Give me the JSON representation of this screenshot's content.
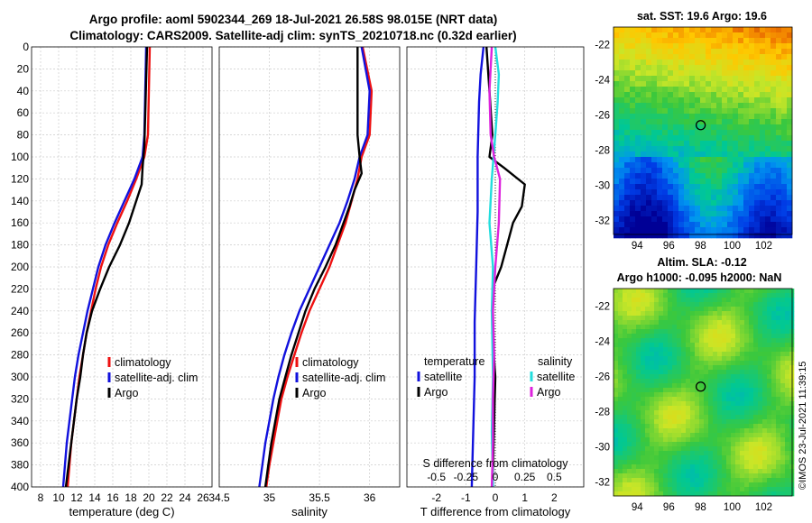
{
  "titles": {
    "line1": "Argo profile: aoml 5902344_269 18-Jul-2021 26.58S 98.015E (NRT data)",
    "line2": "Climatology: CARS2009. Satellite-adj clim: synTS_20210718.nc (0.32d earlier)"
  },
  "colors": {
    "climatology": "#ee1111",
    "satellite": "#1111dd",
    "argo": "#000000",
    "sal_sat": "#22dddd",
    "sal_argo": "#dd22dd"
  },
  "maps": {
    "sst_title": "sat. SST: 19.6 Argo: 19.6",
    "sla_title1": "Altim. SLA: -0.12",
    "sla_title2": "Argo h1000: -0.095 h2000: NaN",
    "lat_ticks": [
      "-22",
      "-24",
      "-26",
      "-28",
      "-30",
      "-32"
    ],
    "lon_ticks": [
      "94",
      "96",
      "98",
      "100",
      "102"
    ]
  },
  "watermark": "©IMOS 23-Jul-2021 11:39:15",
  "chart_data": [
    {
      "type": "line",
      "title": "",
      "xlabel": "temperature (deg C)",
      "ylabel": "",
      "xlim": [
        7,
        27
      ],
      "ylim": [
        400,
        0
      ],
      "xticks": [
        8,
        10,
        12,
        14,
        16,
        18,
        20,
        22,
        24,
        26
      ],
      "yticks": [
        0,
        20,
        40,
        60,
        80,
        100,
        120,
        140,
        160,
        180,
        200,
        220,
        240,
        260,
        280,
        300,
        320,
        340,
        360,
        380,
        400
      ],
      "legend": [
        "climatology",
        "satellite-adj. clim",
        "Argo"
      ],
      "series": [
        {
          "name": "climatology",
          "color": "#ee1111",
          "points": [
            [
              20.1,
              0
            ],
            [
              20.0,
              40
            ],
            [
              19.9,
              80
            ],
            [
              19.5,
              100
            ],
            [
              18.6,
              120
            ],
            [
              17.6,
              140
            ],
            [
              16.5,
              160
            ],
            [
              15.5,
              180
            ],
            [
              14.7,
              200
            ],
            [
              14.1,
              220
            ],
            [
              13.6,
              240
            ],
            [
              13.1,
              260
            ],
            [
              12.7,
              280
            ],
            [
              12.3,
              300
            ],
            [
              12.0,
              320
            ],
            [
              11.7,
              340
            ],
            [
              11.4,
              360
            ],
            [
              11.2,
              380
            ],
            [
              11.0,
              400
            ]
          ]
        },
        {
          "name": "satellite-adj. clim",
          "color": "#1111dd",
          "points": [
            [
              19.7,
              0
            ],
            [
              19.6,
              40
            ],
            [
              19.5,
              80
            ],
            [
              19.3,
              100
            ],
            [
              18.4,
              120
            ],
            [
              17.3,
              140
            ],
            [
              16.2,
              160
            ],
            [
              15.2,
              180
            ],
            [
              14.4,
              200
            ],
            [
              13.8,
              220
            ],
            [
              13.2,
              240
            ],
            [
              12.7,
              260
            ],
            [
              12.2,
              280
            ],
            [
              11.8,
              300
            ],
            [
              11.5,
              320
            ],
            [
              11.2,
              340
            ],
            [
              10.9,
              360
            ],
            [
              10.7,
              380
            ],
            [
              10.5,
              400
            ]
          ]
        },
        {
          "name": "Argo",
          "color": "#000000",
          "points": [
            [
              19.8,
              0
            ],
            [
              19.7,
              30
            ],
            [
              19.6,
              60
            ],
            [
              19.5,
              90
            ],
            [
              19.3,
              110
            ],
            [
              19.2,
              125
            ],
            [
              18.6,
              140
            ],
            [
              17.8,
              160
            ],
            [
              16.8,
              180
            ],
            [
              15.6,
              200
            ],
            [
              14.6,
              220
            ],
            [
              13.7,
              240
            ],
            [
              13.1,
              260
            ],
            [
              12.7,
              280
            ],
            [
              12.4,
              300
            ],
            [
              12.0,
              320
            ],
            [
              11.7,
              340
            ],
            [
              11.4,
              360
            ],
            [
              11.1,
              380
            ],
            [
              10.8,
              400
            ]
          ]
        }
      ]
    },
    {
      "type": "line",
      "title": "",
      "xlabel": "salinity",
      "ylabel": "",
      "xlim": [
        34.5,
        36.3
      ],
      "ylim": [
        400,
        0
      ],
      "xticks": [
        34.5,
        35,
        35.5,
        36
      ],
      "xtick_labels": [
        "34.5",
        "35",
        "35.5",
        "36"
      ],
      "legend": [
        "climatology",
        "satellite-adj. clim",
        "Argo"
      ],
      "series": [
        {
          "name": "climatology",
          "color": "#ee1111",
          "points": [
            [
              35.93,
              0
            ],
            [
              36.02,
              40
            ],
            [
              36.0,
              80
            ],
            [
              35.92,
              100
            ],
            [
              35.88,
              120
            ],
            [
              35.82,
              140
            ],
            [
              35.76,
              160
            ],
            [
              35.68,
              180
            ],
            [
              35.6,
              200
            ],
            [
              35.5,
              220
            ],
            [
              35.4,
              240
            ],
            [
              35.32,
              260
            ],
            [
              35.25,
              280
            ],
            [
              35.18,
              300
            ],
            [
              35.12,
              320
            ],
            [
              35.08,
              340
            ],
            [
              35.04,
              360
            ],
            [
              35.0,
              380
            ],
            [
              34.97,
              400
            ]
          ]
        },
        {
          "name": "satellite-adj. clim",
          "color": "#1111dd",
          "points": [
            [
              35.92,
              0
            ],
            [
              36.0,
              40
            ],
            [
              35.98,
              80
            ],
            [
              35.9,
              100
            ],
            [
              35.85,
              120
            ],
            [
              35.78,
              140
            ],
            [
              35.7,
              160
            ],
            [
              35.6,
              180
            ],
            [
              35.5,
              200
            ],
            [
              35.4,
              220
            ],
            [
              35.3,
              240
            ],
            [
              35.22,
              260
            ],
            [
              35.15,
              280
            ],
            [
              35.09,
              300
            ],
            [
              35.04,
              320
            ],
            [
              35.0,
              340
            ],
            [
              34.96,
              360
            ],
            [
              34.93,
              380
            ],
            [
              34.9,
              400
            ]
          ]
        },
        {
          "name": "Argo",
          "color": "#000000",
          "points": [
            [
              35.88,
              0
            ],
            [
              35.88,
              40
            ],
            [
              35.88,
              80
            ],
            [
              35.9,
              100
            ],
            [
              35.92,
              115
            ],
            [
              35.85,
              130
            ],
            [
              35.8,
              145
            ],
            [
              35.74,
              160
            ],
            [
              35.66,
              180
            ],
            [
              35.56,
              200
            ],
            [
              35.45,
              220
            ],
            [
              35.36,
              240
            ],
            [
              35.29,
              260
            ],
            [
              35.22,
              280
            ],
            [
              35.16,
              300
            ],
            [
              35.1,
              320
            ],
            [
              35.06,
              340
            ],
            [
              35.02,
              360
            ],
            [
              34.99,
              380
            ],
            [
              34.96,
              400
            ]
          ]
        }
      ]
    },
    {
      "type": "line",
      "title": "",
      "xlabel": "T difference from climatology",
      "x2label": "S difference from climatology",
      "ylabel": "",
      "xlim": [
        -3,
        3
      ],
      "ylim": [
        400,
        0
      ],
      "xticks": [
        -2,
        -1,
        0,
        1,
        2
      ],
      "x2lim": [
        -0.75,
        0.75
      ],
      "x2ticks": [
        -0.5,
        -0.25,
        0,
        0.25,
        0.5
      ],
      "x2tick_labels": [
        "-0.5",
        "-0.25",
        "0",
        "0.25",
        "0.5"
      ],
      "legend_t_heading": "temperature",
      "legend_s_heading": "salinity",
      "legend": [
        "satellite",
        "Argo"
      ],
      "series": [
        {
          "name": "temperature satellite",
          "color": "#1111dd",
          "points": [
            [
              -0.4,
              0
            ],
            [
              -0.5,
              25
            ],
            [
              -0.55,
              50
            ],
            [
              -0.6,
              100
            ],
            [
              -0.6,
              150
            ],
            [
              -0.65,
              200
            ],
            [
              -0.7,
              250
            ],
            [
              -0.7,
              300
            ],
            [
              -0.75,
              350
            ],
            [
              -0.8,
              400
            ]
          ]
        },
        {
          "name": "temperature Argo",
          "color": "#000000",
          "points": [
            [
              -0.3,
              0
            ],
            [
              -0.2,
              40
            ],
            [
              -0.1,
              80
            ],
            [
              -0.2,
              100
            ],
            [
              0.3,
              110
            ],
            [
              1.0,
              125
            ],
            [
              0.9,
              145
            ],
            [
              0.6,
              160
            ],
            [
              0.4,
              180
            ],
            [
              0.2,
              200
            ],
            [
              -0.1,
              220
            ],
            [
              -0.1,
              260
            ],
            [
              0.0,
              300
            ],
            [
              -0.05,
              350
            ],
            [
              -0.1,
              400
            ]
          ]
        },
        {
          "name": "salinity satellite",
          "color": "#22dddd",
          "points": [
            [
              0.0,
              0
            ],
            [
              0.03,
              25
            ],
            [
              0.02,
              50
            ],
            [
              0.0,
              80
            ],
            [
              -0.03,
              120
            ],
            [
              -0.05,
              160
            ],
            [
              -0.02,
              200
            ],
            [
              -0.03,
              240
            ],
            [
              -0.02,
              300
            ],
            [
              -0.03,
              350
            ],
            [
              -0.02,
              400
            ]
          ]
        },
        {
          "name": "salinity Argo",
          "color": "#dd22dd",
          "points": [
            [
              -0.03,
              0
            ],
            [
              -0.05,
              40
            ],
            [
              -0.04,
              80
            ],
            [
              -0.01,
              100
            ],
            [
              0.04,
              120
            ],
            [
              0.03,
              160
            ],
            [
              0.0,
              200
            ],
            [
              -0.02,
              240
            ],
            [
              -0.01,
              280
            ],
            [
              -0.02,
              320
            ],
            [
              -0.02,
              360
            ],
            [
              -0.03,
              400
            ]
          ]
        }
      ]
    }
  ]
}
